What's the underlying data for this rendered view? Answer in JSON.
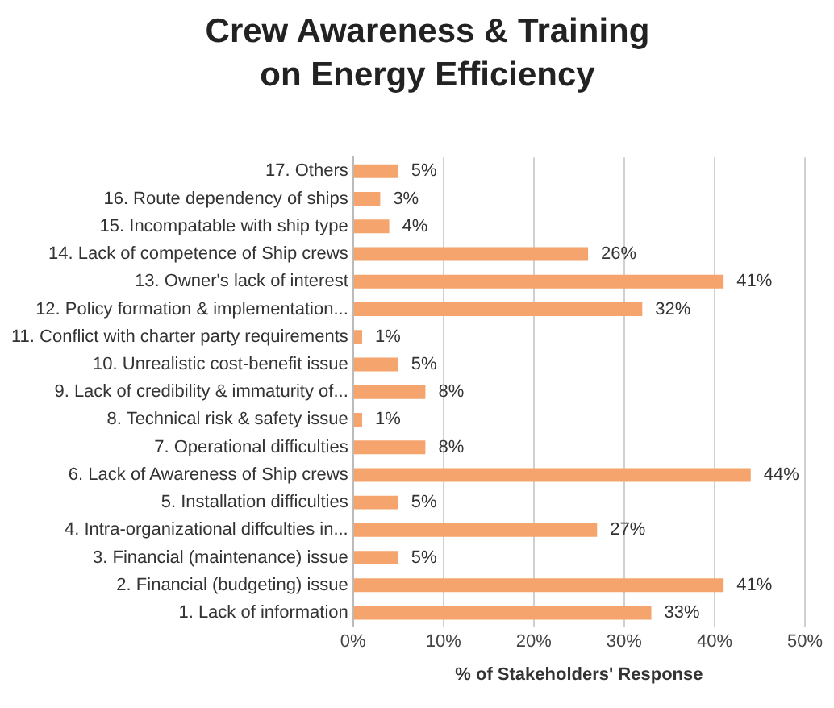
{
  "chart_data": {
    "type": "bar",
    "orientation": "horizontal",
    "title": "Crew Awareness & Training on Energy Efficiency",
    "xlabel": "% of Stakeholders' Response",
    "categories": [
      "17. Others",
      "16. Route dependency of ships",
      "15. Incompatable with ship type",
      "14. Lack of competence of Ship crews",
      "13. Owner's lack of interest",
      "12. Policy formation & implementation...",
      "11. Conflict with charter party requirements",
      "10. Unrealistic cost-benefit issue",
      "9. Lack of credibility & immaturity of...",
      "8. Technical risk & safety issue",
      "7. Operational difficulties",
      "6. Lack of Awareness of Ship crews",
      "5. Installation difficulties",
      "4. Intra-organizational diffculties in...",
      "3. Financial (maintenance) issue",
      "2. Financial (budgeting) issue",
      "1. Lack of information"
    ],
    "values": [
      5,
      3,
      4,
      26,
      41,
      32,
      1,
      5,
      8,
      1,
      8,
      44,
      5,
      27,
      5,
      41,
      33
    ],
    "value_labels": [
      "5%",
      "3%",
      "4%",
      "26%",
      "41%",
      "32%",
      "1%",
      "5%",
      "8%",
      "1%",
      "8%",
      "44%",
      "5%",
      "27%",
      "5%",
      "41%",
      "33%"
    ],
    "color": "#f4a46c",
    "xlim": [
      0,
      50
    ],
    "xticks": [
      {
        "value": 0,
        "label": "0%"
      },
      {
        "value": 10,
        "label": "10%"
      },
      {
        "value": 20,
        "label": "20%"
      },
      {
        "value": 30,
        "label": "30%"
      },
      {
        "value": 40,
        "label": "40%"
      },
      {
        "value": 50,
        "label": "50%"
      }
    ],
    "grid": "x",
    "legend": false
  }
}
